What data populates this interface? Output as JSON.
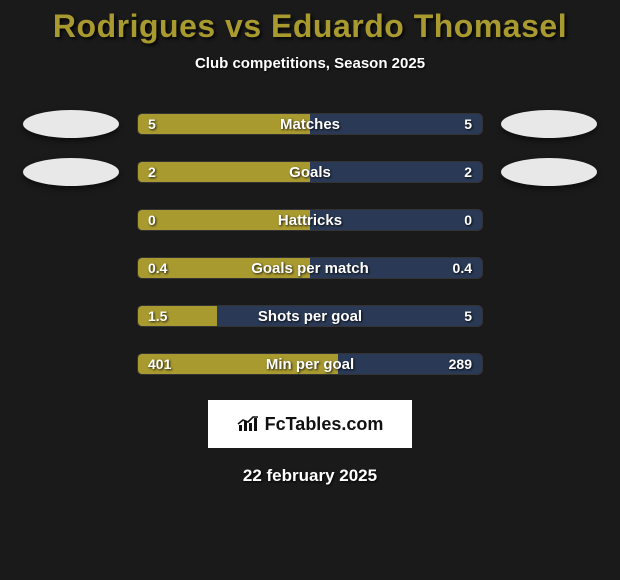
{
  "title_color": "#a89a2f",
  "left_fill_color": "#a89a2f",
  "right_fill_color": "#2a3a56",
  "title": "Rodrigues vs Eduardo Thomasel",
  "subtitle": "Club competitions, Season 2025",
  "rows": [
    {
      "label": "Matches",
      "left_val": "5",
      "right_val": "5",
      "left_pct": 50,
      "right_pct": 50,
      "show_avatars": true
    },
    {
      "label": "Goals",
      "left_val": "2",
      "right_val": "2",
      "left_pct": 50,
      "right_pct": 50,
      "show_avatars": true
    },
    {
      "label": "Hattricks",
      "left_val": "0",
      "right_val": "0",
      "left_pct": 50,
      "right_pct": 50,
      "show_avatars": false
    },
    {
      "label": "Goals per match",
      "left_val": "0.4",
      "right_val": "0.4",
      "left_pct": 50,
      "right_pct": 50,
      "show_avatars": false
    },
    {
      "label": "Shots per goal",
      "left_val": "1.5",
      "right_val": "5",
      "left_pct": 23,
      "right_pct": 77,
      "show_avatars": false
    },
    {
      "label": "Min per goal",
      "left_val": "401",
      "right_val": "289",
      "left_pct": 58,
      "right_pct": 42,
      "show_avatars": false
    }
  ],
  "logo_text": "FcTables.com",
  "date": "22 february 2025"
}
